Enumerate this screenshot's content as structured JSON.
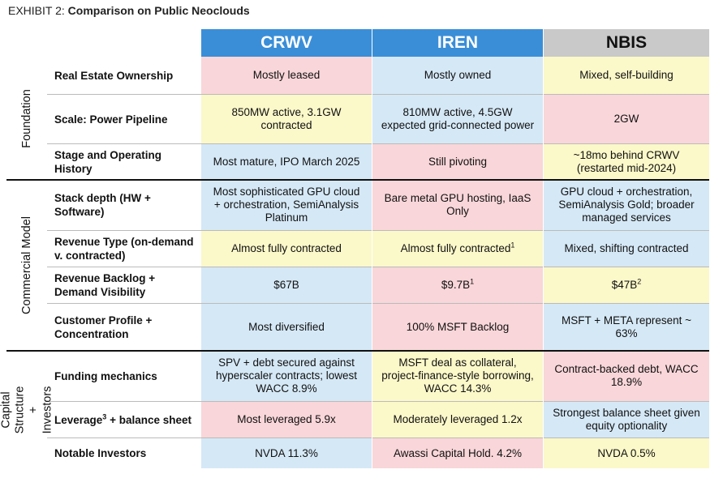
{
  "header": {
    "label": "EXHIBIT 2:",
    "title": "Comparison on Public Neoclouds"
  },
  "table": {
    "columns": [
      "CRWV",
      "IREN",
      "NBIS"
    ],
    "groups": [
      "Foundation",
      "Commercial Model",
      "Capital Structure + Investors"
    ],
    "rows": [
      {
        "label": {
          "text": "Real Estate Ownership"
        },
        "cells": [
          {
            "text": "Mostly leased"
          },
          {
            "text": "Mostly owned"
          },
          {
            "text": "Mixed, self-building"
          }
        ]
      },
      {
        "label": {
          "text": "Scale: Power Pipeline"
        },
        "cells": [
          {
            "text": "850MW active, 3.1GW contracted"
          },
          {
            "text": "810MW active, 4.5GW expected grid-connected power"
          },
          {
            "text": "2GW"
          }
        ]
      },
      {
        "label": {
          "text": "Stage and Operating History"
        },
        "cells": [
          {
            "text": "Most mature, IPO March 2025"
          },
          {
            "text": "Still pivoting"
          },
          {
            "text": "~18mo behind CRWV (restarted mid-2024)"
          }
        ]
      },
      {
        "label": {
          "text": "Stack depth (HW + Software)"
        },
        "cells": [
          {
            "text": "Most sophisticated GPU cloud + orchestration, SemiAnalysis Platinum"
          },
          {
            "text": "Bare metal GPU hosting, IaaS Only"
          },
          {
            "text": "GPU cloud + orchestration, SemiAnalysis Gold; broader managed services"
          }
        ]
      },
      {
        "label": {
          "text": "Revenue Type (on-demand v. contracted)"
        },
        "cells": [
          {
            "text": "Almost fully contracted"
          },
          {
            "text": "Almost fully contracted",
            "sup": "1"
          },
          {
            "text": "Mixed, shifting contracted"
          }
        ]
      },
      {
        "label": {
          "text": "Revenue Backlog + Demand Visibility"
        },
        "cells": [
          {
            "text": "$67B"
          },
          {
            "text": "$9.7B",
            "sup": "1"
          },
          {
            "text": "$47B",
            "sup": "2"
          }
        ]
      },
      {
        "label": {
          "text": "Customer Profile + Concentration"
        },
        "cells": [
          {
            "text": "Most diversified"
          },
          {
            "text": "100% MSFT Backlog"
          },
          {
            "text": "MSFT + META represent ~ 63%"
          }
        ]
      },
      {
        "label": {
          "text": "Funding mechanics"
        },
        "cells": [
          {
            "text": "SPV + debt secured against hyperscaler contracts; lowest WACC 8.9%"
          },
          {
            "text": "MSFT deal as collateral, project-finance-style borrowing, WACC 14.3%"
          },
          {
            "text": "Contract-backed debt, WACC 18.9%"
          }
        ]
      },
      {
        "label": {
          "text": "Leverage",
          "sup": "3",
          "after": " + balance sheet"
        },
        "cells": [
          {
            "text": "Most leveraged 5.9x"
          },
          {
            "text": "Moderately leveraged 1.2x"
          },
          {
            "text": "Strongest balance sheet given equity optionality"
          }
        ]
      },
      {
        "label": {
          "text": "Notable Investors"
        },
        "cells": [
          {
            "text": "NVDA 11.3%"
          },
          {
            "text": "Awassi Capital Hold. 4.2%"
          },
          {
            "text": "NVDA 0.5%"
          }
        ]
      }
    ]
  }
}
